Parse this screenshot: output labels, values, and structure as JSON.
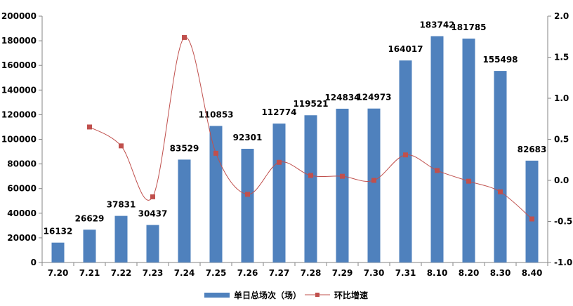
{
  "chart_data": {
    "type": "bar",
    "categories": [
      "7.20",
      "7.21",
      "7.22",
      "7.23",
      "7.24",
      "7.25",
      "7.26",
      "7.27",
      "7.28",
      "7.29",
      "7.30",
      "7.31",
      "8.10",
      "8.20",
      "8.30",
      "8.40"
    ],
    "series": [
      {
        "name": "单日总场次（场）",
        "type": "bar",
        "axis": "left",
        "color": "#4f81bd",
        "values": [
          16132,
          26629,
          37831,
          30437,
          83529,
          110853,
          92301,
          112774,
          119521,
          124834,
          124973,
          164017,
          183742,
          181785,
          155498,
          82683
        ],
        "labels": [
          "16132",
          "26629",
          "37831",
          "30437",
          "83529",
          "110853",
          "92301",
          "112774",
          "119521",
          "124834",
          "124973",
          "164017",
          "183742",
          "181785",
          "155498",
          "82683"
        ]
      },
      {
        "name": "环比增速",
        "type": "line",
        "axis": "right",
        "color": "#c0504d",
        "values": [
          null,
          0.65,
          0.42,
          -0.2,
          1.74,
          0.33,
          -0.17,
          0.22,
          0.06,
          0.05,
          0.0,
          0.31,
          0.12,
          -0.01,
          -0.14,
          -0.47
        ]
      }
    ],
    "y_left": {
      "ylim": [
        0,
        200000
      ],
      "ticks": [
        "0",
        "20000",
        "40000",
        "60000",
        "80000",
        "100000",
        "120000",
        "140000",
        "160000",
        "180000",
        "200000"
      ]
    },
    "y_right": {
      "ylim": [
        -1.0,
        2.0
      ],
      "ticks": [
        "-1.0",
        "-0.5",
        "0.0",
        "0.5",
        "1.0",
        "1.5",
        "2.0"
      ]
    },
    "title": "",
    "xlabel": "",
    "ylabel": "",
    "grid": false,
    "legend_position": "bottom"
  }
}
